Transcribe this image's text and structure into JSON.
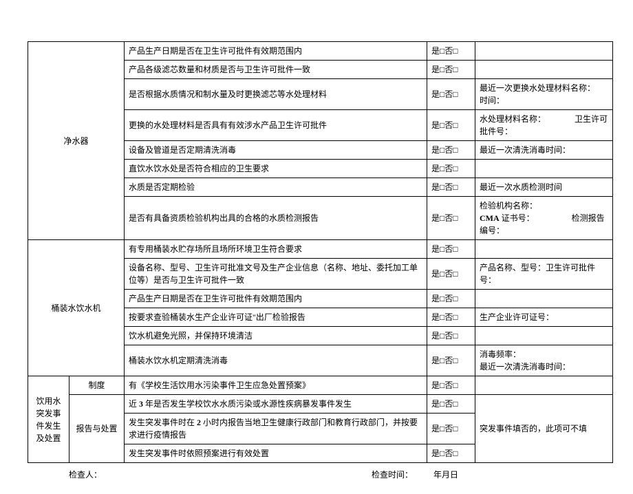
{
  "sections": {
    "purifier": {
      "label": "净水器",
      "rows": [
        {
          "item": "产品生产日期是否在卫生许可批件有效期范围内",
          "check": "是□否□",
          "remark": ""
        },
        {
          "item": "产品各级滤芯数量和材质是否与卫生许可批件一致",
          "check": "是□否□",
          "remark": ""
        },
        {
          "item": "是否根据水质情况和制水量及时更换滤芯等水处理材料",
          "check": "是□否□",
          "remark": "最近一次更换水处理材料名称：　　　　　时间："
        },
        {
          "item": "更换的水处理材料是否具有有效涉水产品卫生许可批件",
          "check": "是□否□",
          "remark": "水处理材料名称：　　　　卫生许可批件号："
        },
        {
          "item": "设备及管道是否定期清洗消毒",
          "check": "是□否□",
          "remark": "最近一次清洗消毒时间："
        },
        {
          "item": "直饮水饮水处是否符合相应的卫生要求",
          "check": "是□否□",
          "remark": ""
        },
        {
          "item": "水质是否定期检验",
          "check": "是□否□",
          "remark": "最近一次水质检测时间"
        },
        {
          "item": "是否有具备资质检验机构出具的合格的水质检测报告",
          "check": "是□否□",
          "remark": "检验机构名称：\nCMA 证书号：　　　　　检测报告编号："
        }
      ]
    },
    "bottled": {
      "label": "桶装水饮水机",
      "rows": [
        {
          "item": "有专用桶装水贮存场所且场所环境卫生符合要求",
          "check": "是□否□",
          "remark": ""
        },
        {
          "item": "设备名称、型号、卫生许可批准文号及生产企业信息（名称、地址、委托加工单位等）是否与卫生许可批件一致",
          "check": "是□否□",
          "remark": "产品名称、型号：卫生许可批件号："
        },
        {
          "item": "产品生产日期是否在卫生许可批件有效期范围内",
          "check": "是□否□",
          "remark": ""
        },
        {
          "item": "按要求查验桶装水生产企业许可证\"出厂检验报告",
          "check": "是□否□",
          "remark": "生产企业许可证号："
        },
        {
          "item": "饮水机避免光照，并保持环境清洁",
          "check": "是□否□",
          "remark": ""
        },
        {
          "item": "桶装水饮水机定期清洗消毒",
          "check": "是□否□",
          "remark": "消毒频率：\n最近一次清洗消毒时间："
        }
      ]
    },
    "emergency": {
      "label": "饮用水突发事件发生及处置",
      "system": {
        "label": "制度",
        "rows": [
          {
            "item": "有《学校生活饮用水污染事件卫生应急处置预案》",
            "check": "是□否□",
            "remark": ""
          }
        ]
      },
      "report": {
        "label": "报告与处置",
        "rows": [
          {
            "item_html": "近 <b>3</b> 年是否发生学校饮水水质污染或水源性疾病暴发事件发生",
            "check": "是□否□"
          },
          {
            "item_html": "发生突发事件时在 <b>2</b> 小时内报告当地卫生健康行政部门和教育行政部门，并按要求进行疫情报告",
            "check": "是□否□"
          },
          {
            "item_html": "发生突发事件时依照预案进行有效处置",
            "check": "是□否□"
          }
        ],
        "remark": "突发事件填否的，此项可不填"
      }
    }
  },
  "footer": {
    "inspector": "检查人：",
    "check_time": "检查时间：　　　年月日"
  }
}
